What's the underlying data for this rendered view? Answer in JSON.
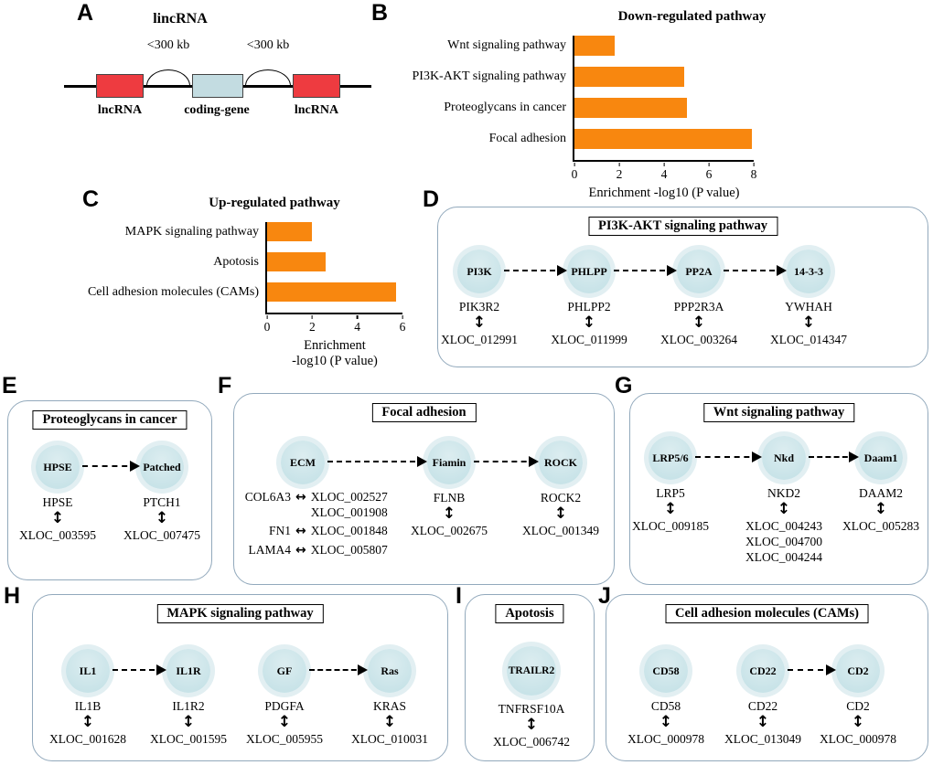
{
  "colors": {
    "bar_orange": "#F8870F",
    "lnc_red": "#EE3B40",
    "coding_blue": "#C3DCE1",
    "node_fill": "#C8E3E8",
    "node_halo": "#E2EFF2",
    "panel_border": "#92A9BC"
  },
  "chart_data": [
    {
      "type": "bar",
      "orientation": "horizontal",
      "title": "Down-regulated pathway",
      "categories": [
        "Wnt signaling pathway",
        "PI3K-AKT signaling pathway",
        "Proteoglycans in cancer",
        "Focal adhesion"
      ],
      "values": [
        1.8,
        4.9,
        5.0,
        7.9
      ],
      "xlabel": "Enrichment -log10 (P value)",
      "xlabel_lines": [
        "Enrichment -log10 (P value)"
      ],
      "xlim": [
        0,
        8
      ],
      "xticks": [
        0,
        2,
        4,
        6,
        8
      ],
      "bar_color": "#F8870F",
      "grid": false,
      "legend": false
    },
    {
      "type": "bar",
      "orientation": "horizontal",
      "title": "Up-regulated pathway",
      "categories": [
        "MAPK signaling pathway",
        "Apotosis",
        "Cell adhesion molecules (CAMs)"
      ],
      "values": [
        2.0,
        2.6,
        5.7
      ],
      "xlabel": "Enrichment -log10 (P value)",
      "xlabel_lines": [
        "Enrichment",
        "-log10 (P value)"
      ],
      "xlim": [
        0,
        6
      ],
      "xticks": [
        0,
        2,
        4,
        6
      ],
      "bar_color": "#F8870F",
      "grid": false,
      "legend": false
    }
  ],
  "panel_a": {
    "letter": "A",
    "title": "lincRNA",
    "distance_left": "<300 kb",
    "distance_right": "<300 kb",
    "box_labels": [
      "lncRNA",
      "coding-gene",
      "lncRNA"
    ]
  },
  "panel_b": {
    "letter": "B"
  },
  "panel_c": {
    "letter": "C"
  },
  "panel_d": {
    "letter": "D",
    "title": "PI3K-AKT signaling pathway",
    "nodes": [
      "PI3K",
      "PHLPP",
      "PP2A",
      "14-3-3"
    ],
    "genes": [
      "PIK3R2",
      "PHLPP2",
      "PPP2R3A",
      "YWHAH"
    ],
    "xlocs": [
      "XLOC_012991",
      "XLOC_011999",
      "XLOC_003264",
      "XLOC_014347"
    ]
  },
  "panel_e": {
    "letter": "E",
    "title": "Proteoglycans in cancer",
    "nodes": [
      "HPSE",
      "Patched"
    ],
    "genes": [
      "HPSE",
      "PTCH1"
    ],
    "xlocs": [
      "XLOC_003595",
      "XLOC_007475"
    ]
  },
  "panel_f": {
    "letter": "F",
    "title": "Focal adhesion",
    "nodes": [
      "ECM",
      "Fiamin",
      "ROCK"
    ],
    "ecm_pairs": [
      {
        "gene": "COL6A3",
        "xloc": "XLOC_002527",
        "xloc2": "XLOC_001908"
      },
      {
        "gene": "FN1",
        "xloc": "XLOC_001848"
      },
      {
        "gene": "LAMA4",
        "xloc": "XLOC_005807"
      }
    ],
    "fiamin_gene": "FLNB",
    "fiamin_xloc": "XLOC_002675",
    "rock_gene": "ROCK2",
    "rock_xloc": "XLOC_001349"
  },
  "panel_g": {
    "letter": "G",
    "title": "Wnt signaling pathway",
    "nodes": [
      "LRP5/6",
      "Nkd",
      "Daam1"
    ],
    "genes": [
      "LRP5",
      "NKD2",
      "DAAM2"
    ],
    "xlocs": [
      [
        "XLOC_009185"
      ],
      [
        "XLOC_004243",
        "XLOC_004700",
        "XLOC_004244"
      ],
      [
        "XLOC_005283"
      ]
    ]
  },
  "panel_h": {
    "letter": "H",
    "title": "MAPK signaling pathway",
    "nodes": [
      "IL1",
      "IL1R",
      "GF",
      "Ras"
    ],
    "genes": [
      "IL1B",
      "IL1R2",
      "PDGFA",
      "KRAS"
    ],
    "xlocs": [
      "XLOC_001628",
      "XLOC_001595",
      "XLOC_005955",
      "XLOC_010031"
    ]
  },
  "panel_i": {
    "letter": "I",
    "title": "Apotosis",
    "nodes": [
      "TRAILR2"
    ],
    "genes": [
      "TNFRSF10A"
    ],
    "xlocs": [
      "XLOC_006742"
    ]
  },
  "panel_j": {
    "letter": "J",
    "title": "Cell adhesion molecules (CAMs)",
    "nodes": [
      "CD58",
      "CD22",
      "CD2"
    ],
    "genes": [
      "CD58",
      "CD22",
      "CD2"
    ],
    "xlocs": [
      "XLOC_000978",
      "XLOC_013049",
      "XLOC_000978"
    ]
  }
}
